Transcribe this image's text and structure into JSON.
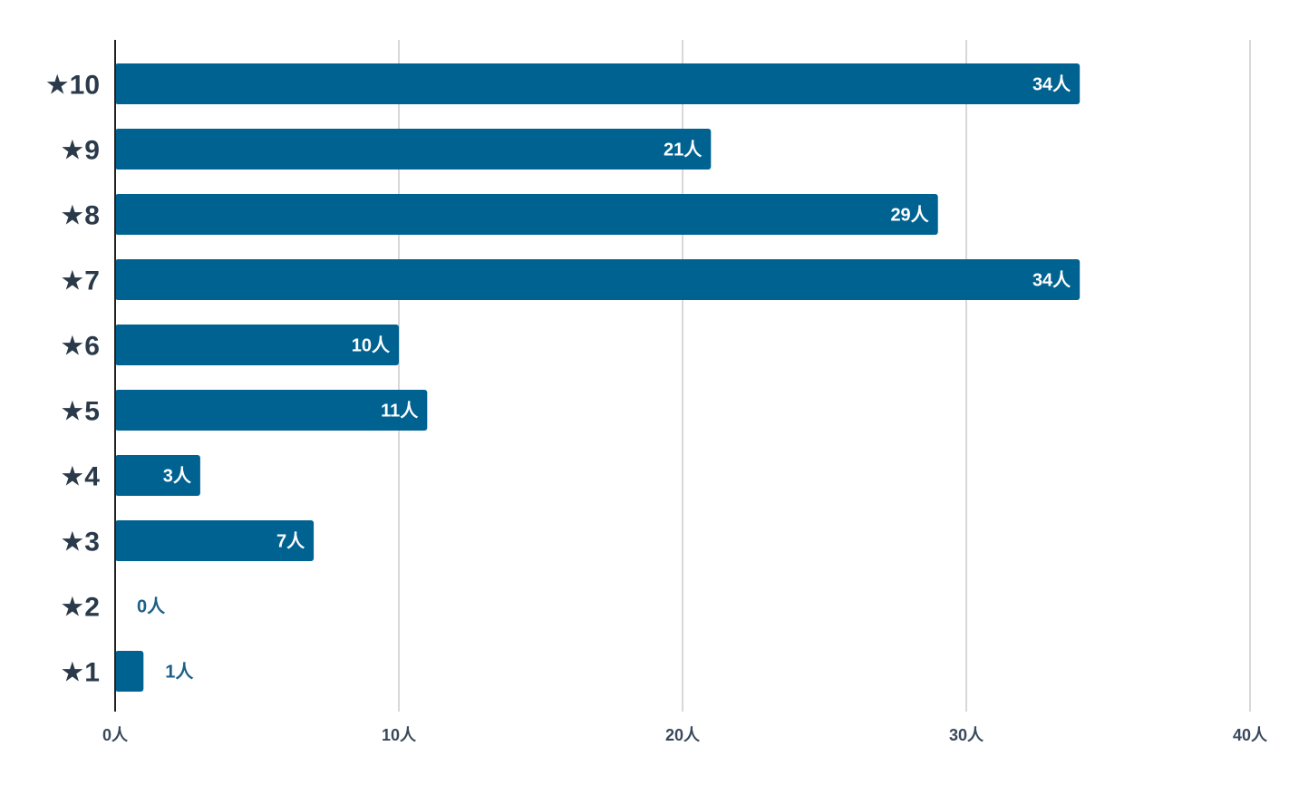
{
  "chart_data": {
    "type": "bar",
    "orientation": "horizontal",
    "categories": [
      "★10",
      "★9",
      "★8",
      "★7",
      "★6",
      "★5",
      "★4",
      "★3",
      "★2",
      "★1"
    ],
    "values": [
      34,
      21,
      29,
      34,
      10,
      11,
      3,
      7,
      0,
      1
    ],
    "unit": "人",
    "xlim": [
      0,
      40
    ],
    "xticks": [
      0,
      10,
      20,
      30,
      40
    ],
    "xtick_labels": [
      "0人",
      "10人",
      "20人",
      "30人",
      "40人"
    ],
    "data_labels": [
      "34人",
      "21人",
      "29人",
      "34人",
      "10人",
      "11人",
      "3人",
      "7人",
      "0人",
      "1人"
    ],
    "grid": true,
    "legend": "none",
    "title": "",
    "xlabel": "",
    "ylabel": ""
  },
  "colors": {
    "bar": "#006291",
    "grid": "#cccccc",
    "axis": "#222222",
    "inside_label": "#ffffff",
    "outside_label": "#1d5f87",
    "category_label": "#2a3a4a"
  }
}
